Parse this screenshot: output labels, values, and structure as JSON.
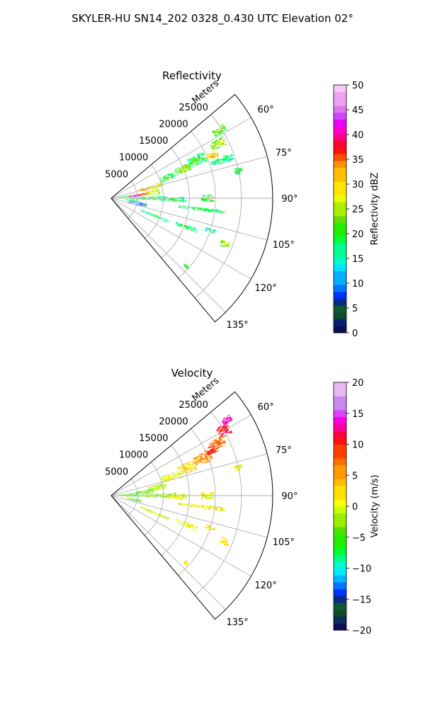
{
  "figure": {
    "suptitle": "SKYLER-HU  SN14_202  0328_0.430 UTC Elevation 02°"
  },
  "chart_data": [
    {
      "type": "heatmap",
      "projection": "polar",
      "title": "Reflectivity",
      "radial_axis_label": "Meters",
      "radial_ticks": [
        5000,
        10000,
        15000,
        20000,
        25000
      ],
      "radial_tick_labels": [
        "5000",
        "10000",
        "15000",
        "20000",
        "25000"
      ],
      "rmax": 31000,
      "angular_range_deg": [
        50,
        140
      ],
      "angular_ticks": [
        60,
        75,
        90,
        105,
        120,
        135
      ],
      "angular_tick_labels": [
        "60°",
        "75°",
        "90°",
        "105°",
        "120°",
        "135°"
      ],
      "grid": true,
      "colorbar": {
        "label": "Reflectivity dBZ",
        "min": 0,
        "max": 50,
        "ticks": [
          0,
          5,
          10,
          15,
          20,
          25,
          30,
          35,
          40,
          45,
          50
        ],
        "tick_labels": [
          "0",
          "5",
          "10",
          "15",
          "20",
          "25",
          "30",
          "35",
          "40",
          "45",
          "50"
        ]
      },
      "echoes": [
        {
          "az": 84,
          "r": 2500,
          "dr": 2600,
          "dth": 8,
          "v": 22
        },
        {
          "az": 84,
          "r": 4600,
          "dr": 2400,
          "dth": 6,
          "v": 44
        },
        {
          "az": 83,
          "r": 6200,
          "dr": 2200,
          "dth": 5,
          "v": 38
        },
        {
          "az": 82,
          "r": 8200,
          "dr": 2600,
          "dth": 7,
          "v": 28
        },
        {
          "az": 75,
          "r": 6500,
          "dr": 2000,
          "dth": 5,
          "v": 36
        },
        {
          "az": 75,
          "r": 9000,
          "dr": 2800,
          "dth": 6,
          "v": 30
        },
        {
          "az": 70,
          "r": 11500,
          "dr": 3200,
          "dth": 6,
          "v": 22
        },
        {
          "az": 68,
          "r": 15000,
          "dr": 3500,
          "dth": 5,
          "v": 26
        },
        {
          "az": 66,
          "r": 18000,
          "dr": 3500,
          "dth": 6,
          "v": 22
        },
        {
          "az": 67,
          "r": 21000,
          "dr": 2500,
          "dth": 4,
          "v": 33
        },
        {
          "az": 63,
          "r": 23000,
          "dr": 3000,
          "dth": 4,
          "v": 27
        },
        {
          "az": 58,
          "r": 24500,
          "dr": 2600,
          "dth": 3,
          "v": 25
        },
        {
          "az": 90,
          "r": 7000,
          "dr": 7000,
          "dth": 5,
          "v": 22
        },
        {
          "az": 91,
          "r": 12000,
          "dr": 5000,
          "dth": 4,
          "v": 20
        },
        {
          "az": 96,
          "r": 4000,
          "dr": 2500,
          "dth": 6,
          "v": 19
        },
        {
          "az": 101,
          "r": 5200,
          "dr": 3500,
          "dth": 6,
          "v": 12
        },
        {
          "az": 112,
          "r": 9000,
          "dr": 6000,
          "dth": 3,
          "v": 20
        },
        {
          "az": 111,
          "r": 15500,
          "dr": 4500,
          "dth": 3,
          "v": 21
        },
        {
          "az": 108,
          "r": 20000,
          "dr": 2000,
          "dth": 2,
          "v": 19
        },
        {
          "az": 90,
          "r": 18500,
          "dr": 2500,
          "dth": 4,
          "v": 24
        },
        {
          "az": 97,
          "r": 17500,
          "dr": 9000,
          "dth": 2,
          "v": 21
        },
        {
          "az": 112,
          "r": 23500,
          "dr": 1800,
          "dth": 3,
          "v": 27
        },
        {
          "az": 132,
          "r": 19500,
          "dr": 1200,
          "dth": 2,
          "v": 23
        },
        {
          "az": 71,
          "r": 22500,
          "dr": 4500,
          "dth": 3,
          "v": 20
        },
        {
          "az": 78,
          "r": 25000,
          "dr": 1500,
          "dth": 3,
          "v": 22
        }
      ]
    },
    {
      "type": "heatmap",
      "projection": "polar",
      "title": "Velocity",
      "radial_axis_label": "Meters",
      "radial_ticks": [
        5000,
        10000,
        15000,
        20000,
        25000
      ],
      "radial_tick_labels": [
        "5000",
        "10000",
        "15000",
        "20000",
        "25000"
      ],
      "rmax": 31000,
      "angular_range_deg": [
        50,
        140
      ],
      "angular_ticks": [
        60,
        75,
        90,
        105,
        120,
        135
      ],
      "angular_tick_labels": [
        "60°",
        "75°",
        "90°",
        "105°",
        "120°",
        "135°"
      ],
      "grid": true,
      "colorbar": {
        "label": "Velocity (m/s)",
        "min": -20,
        "max": 20,
        "ticks": [
          -20,
          -15,
          -10,
          -5,
          0,
          5,
          10,
          15,
          20
        ],
        "tick_labels": [
          "−20",
          "−15",
          "−10",
          "−5",
          "0",
          "5",
          "10",
          "15",
          "20"
        ]
      },
      "echoes": [
        {
          "az": 88,
          "r": 3500,
          "dr": 4000,
          "dth": 10,
          "v": -3
        },
        {
          "az": 84,
          "r": 6500,
          "dr": 3500,
          "dth": 7,
          "v": -4
        },
        {
          "az": 80,
          "r": 9000,
          "dr": 3500,
          "dth": 7,
          "v": -1
        },
        {
          "az": 73,
          "r": 12000,
          "dr": 4000,
          "dth": 7,
          "v": 1
        },
        {
          "az": 70,
          "r": 15500,
          "dr": 3500,
          "dth": 7,
          "v": 3
        },
        {
          "az": 68,
          "r": 19000,
          "dr": 3500,
          "dth": 6,
          "v": 6
        },
        {
          "az": 64,
          "r": 22500,
          "dr": 3500,
          "dth": 5,
          "v": 8
        },
        {
          "az": 60,
          "r": 25000,
          "dr": 2500,
          "dth": 5,
          "v": 11
        },
        {
          "az": 57,
          "r": 26500,
          "dr": 2000,
          "dth": 3,
          "v": 14
        },
        {
          "az": 66,
          "r": 21000,
          "dr": 2500,
          "dth": 3,
          "v": 10
        },
        {
          "az": 90,
          "r": 9000,
          "dr": 7000,
          "dth": 5,
          "v": -2
        },
        {
          "az": 91,
          "r": 12500,
          "dr": 4000,
          "dth": 4,
          "v": 1
        },
        {
          "az": 90,
          "r": 18500,
          "dr": 2500,
          "dth": 4,
          "v": 1
        },
        {
          "az": 97,
          "r": 17500,
          "dr": 9000,
          "dth": 2,
          "v": 2
        },
        {
          "az": 112,
          "r": 9000,
          "dr": 6000,
          "dth": 3,
          "v": 0
        },
        {
          "az": 111,
          "r": 15500,
          "dr": 4500,
          "dth": 3,
          "v": 1
        },
        {
          "az": 108,
          "r": 20000,
          "dr": 2000,
          "dth": 2,
          "v": 2
        },
        {
          "az": 112,
          "r": 23500,
          "dr": 1800,
          "dth": 3,
          "v": 3
        },
        {
          "az": 132,
          "r": 19500,
          "dr": 1200,
          "dth": 2,
          "v": 2
        },
        {
          "az": 100,
          "r": 4500,
          "dr": 3000,
          "dth": 6,
          "v": -4
        },
        {
          "az": 78,
          "r": 25000,
          "dr": 1500,
          "dth": 3,
          "v": 1
        }
      ]
    }
  ]
}
